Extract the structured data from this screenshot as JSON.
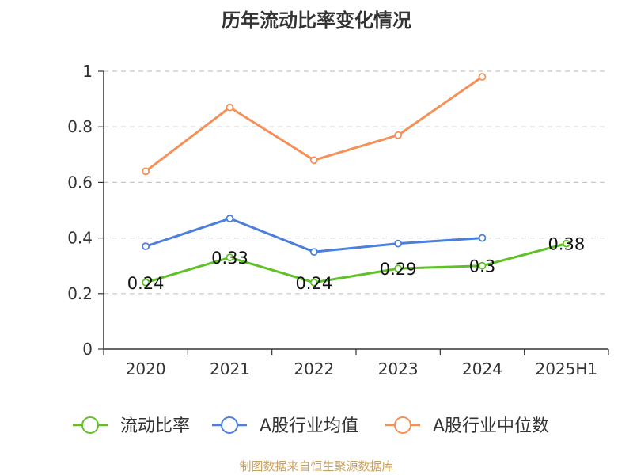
{
  "title": "历年流动比率变化情况",
  "source": "制图数据来自恒生聚源数据库",
  "colors": {
    "axis": "#333333",
    "grid": "#c8c8c8"
  },
  "chart_data": {
    "type": "line",
    "categories": [
      "2020",
      "2021",
      "2022",
      "2023",
      "2024",
      "2025H1"
    ],
    "y_ticks": [
      "0",
      "0.2",
      "0.4",
      "0.6",
      "0.8",
      "1"
    ],
    "ylim": [
      0,
      1
    ],
    "grid": true,
    "legend_position": "bottom",
    "series": [
      {
        "name": "流动比率",
        "color": "#5ec126",
        "values": [
          0.24,
          0.33,
          0.24,
          0.29,
          0.3,
          0.38
        ],
        "labels": [
          "0.24",
          "0.33",
          "0.24",
          "0.29",
          "0.3",
          "0.38"
        ]
      },
      {
        "name": "A股行业均值",
        "color": "#4a7fdd",
        "values": [
          0.37,
          0.47,
          0.35,
          0.38,
          0.4,
          null
        ]
      },
      {
        "name": "A股行业中位数",
        "color": "#f59158",
        "values": [
          0.64,
          0.87,
          0.68,
          0.77,
          0.98,
          null
        ]
      }
    ]
  }
}
